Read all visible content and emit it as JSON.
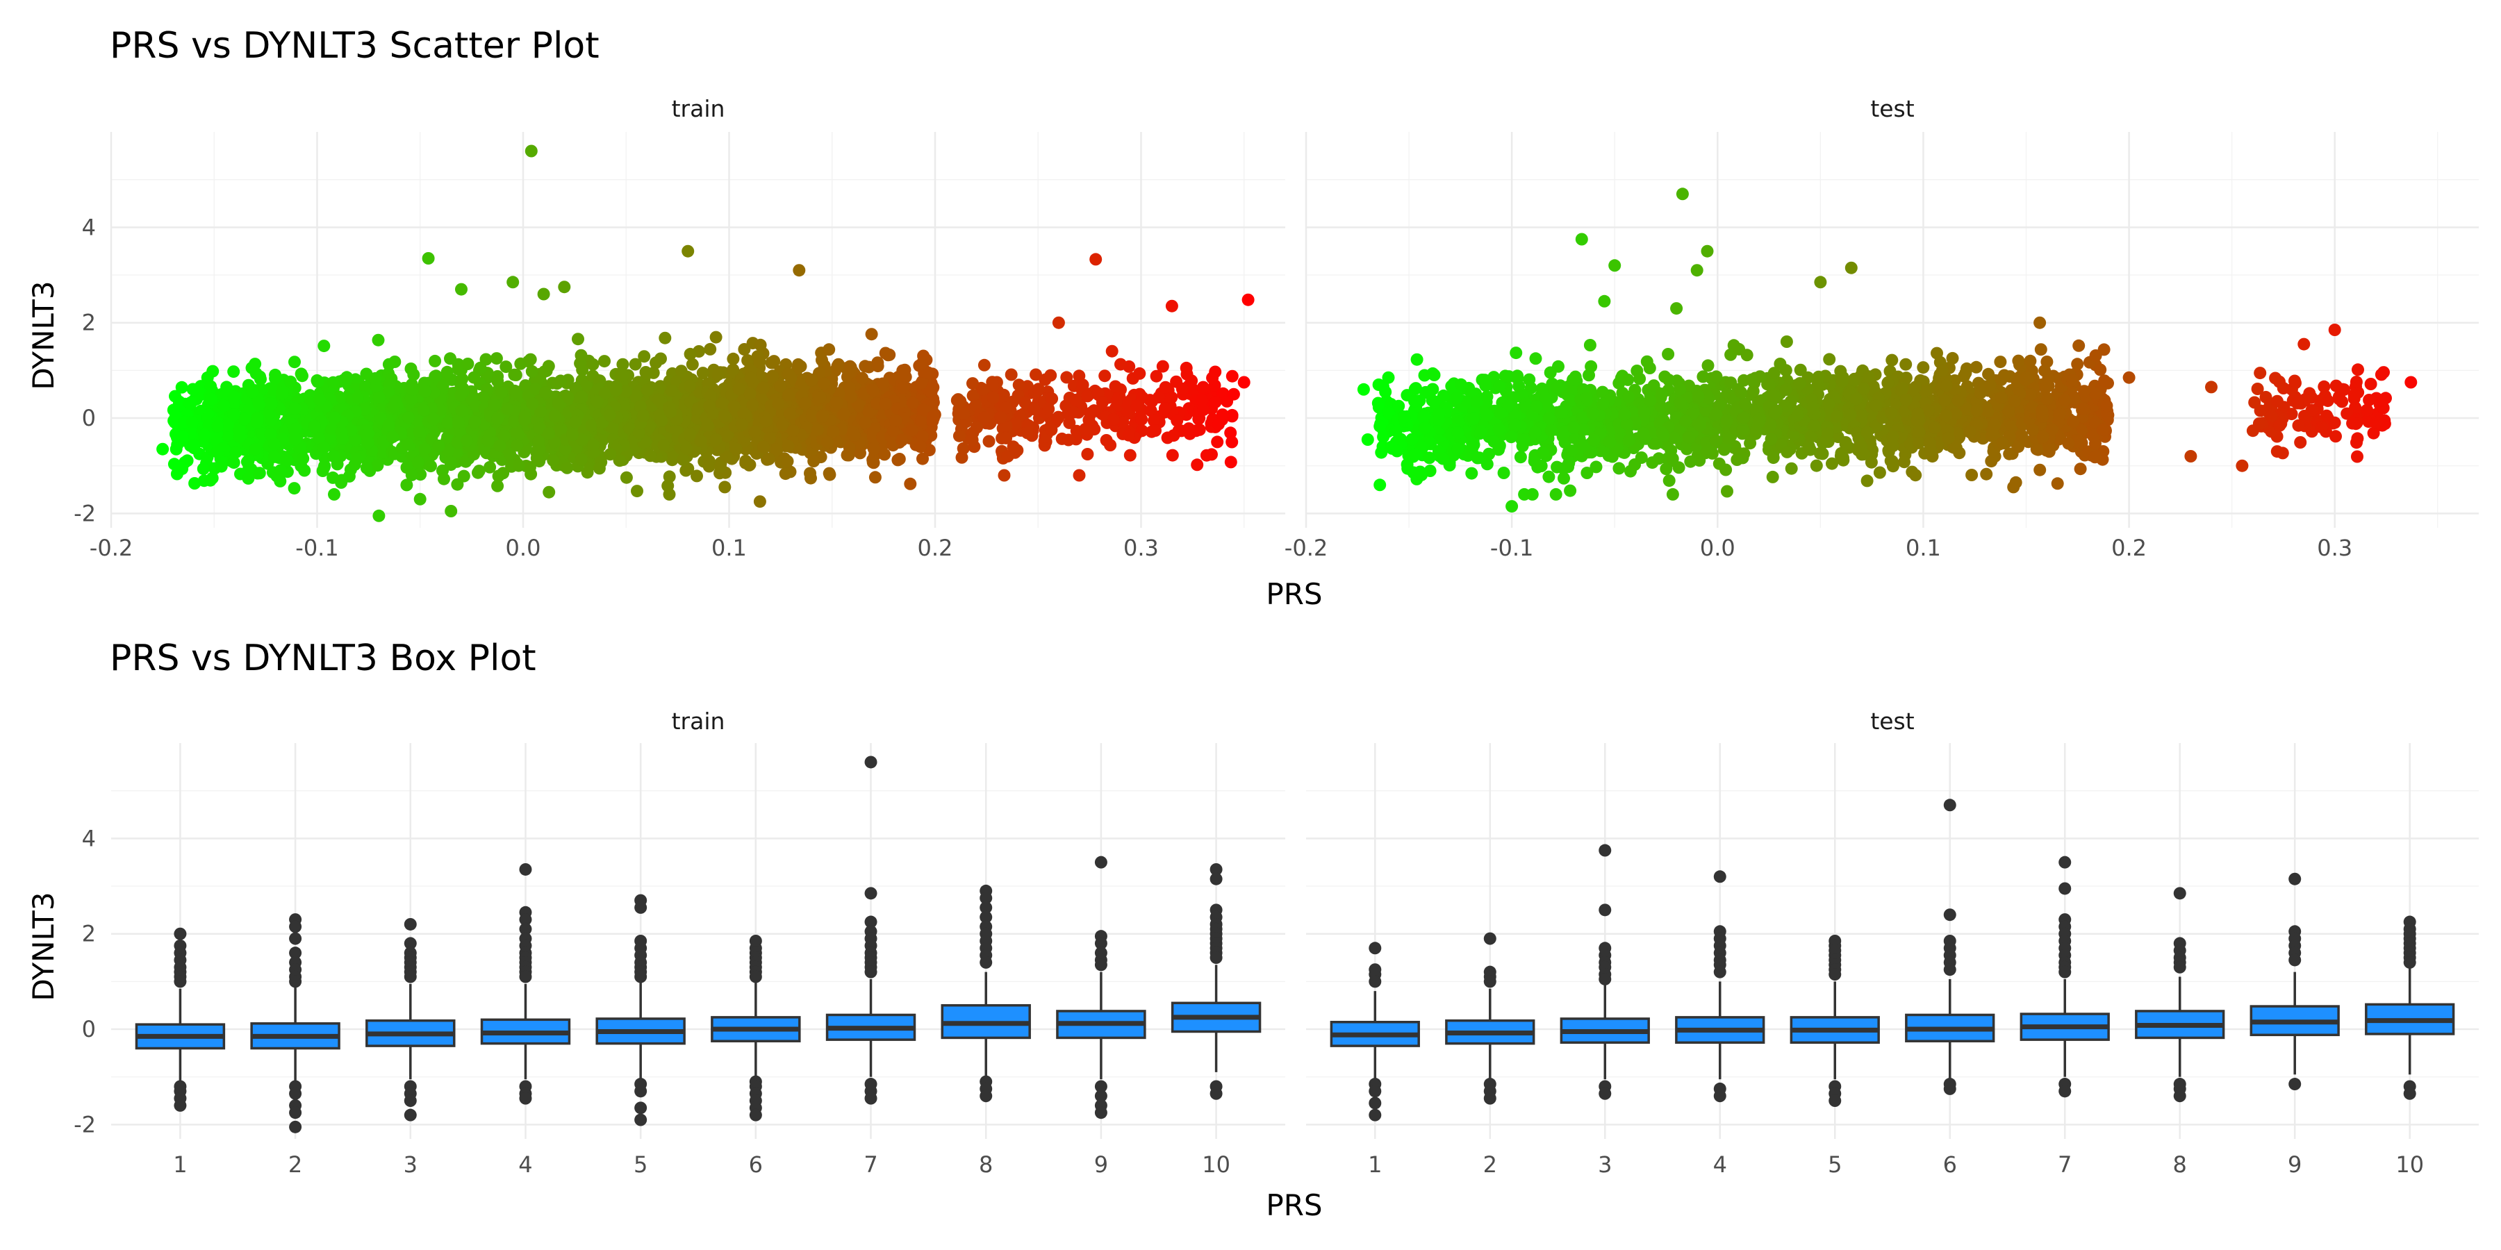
{
  "chart_data": [
    {
      "type": "scatter",
      "title": "PRS vs DYNLT3 Scatter Plot",
      "xlabel": "PRS",
      "ylabel": "DYNLT3",
      "xlim": [
        -0.2,
        0.37
      ],
      "ylim": [
        -2.3,
        6.0
      ],
      "x_ticks": [
        "-0.2",
        "-0.1",
        "0.0",
        "0.1",
        "0.2",
        "0.3"
      ],
      "y_ticks": [
        "-2",
        "0",
        "2",
        "4"
      ],
      "grid": true,
      "color_gradient": [
        "#00ff00",
        "#ff0000"
      ],
      "facets": [
        {
          "name": "train",
          "bulk": {
            "x_range": [
              -0.17,
              0.2
            ],
            "sd_y": 0.5,
            "trend": 0.9
          },
          "cluster": {
            "x_range": [
              0.21,
              0.345
            ],
            "center_y": 0.1,
            "sd_y": 0.45
          },
          "points": [
            {
              "x": 0.004,
              "y": 5.6
            },
            {
              "x": -0.046,
              "y": 3.35
            },
            {
              "x": 0.08,
              "y": 3.5
            },
            {
              "x": 0.134,
              "y": 3.1
            },
            {
              "x": 0.278,
              "y": 3.33
            },
            {
              "x": 0.315,
              "y": 2.35
            },
            {
              "x": 0.352,
              "y": 2.48
            },
            {
              "x": -0.005,
              "y": 2.85
            },
            {
              "x": 0.01,
              "y": 2.6
            },
            {
              "x": -0.03,
              "y": 2.7
            },
            {
              "x": 0.02,
              "y": 2.75
            },
            {
              "x": -0.175,
              "y": -0.65
            },
            {
              "x": -0.07,
              "y": -2.05
            },
            {
              "x": -0.035,
              "y": -1.95
            },
            {
              "x": -0.05,
              "y": -1.7
            },
            {
              "x": 0.115,
              "y": -1.75
            },
            {
              "x": 0.27,
              "y": -1.2
            },
            {
              "x": 0.35,
              "y": 0.75
            },
            {
              "x": 0.337,
              "y": -0.5
            },
            {
              "x": 0.345,
              "y": 0.5
            },
            {
              "x": 0.322,
              "y": 1.05
            },
            {
              "x": 0.26,
              "y": 2.0
            },
            {
              "x": 0.238,
              "y": -0.6
            },
            {
              "x": 0.228,
              "y": 0.7
            }
          ]
        },
        {
          "name": "test",
          "bulk": {
            "x_range": [
              -0.165,
              0.19
            ],
            "sd_y": 0.5,
            "trend": 0.8
          },
          "cluster": {
            "x_range": [
              0.26,
              0.325
            ],
            "center_y": 0.2,
            "sd_y": 0.4
          },
          "points": [
            {
              "x": -0.017,
              "y": 4.7
            },
            {
              "x": -0.066,
              "y": 3.75
            },
            {
              "x": -0.005,
              "y": 3.5
            },
            {
              "x": -0.05,
              "y": 3.2
            },
            {
              "x": -0.01,
              "y": 3.1
            },
            {
              "x": 0.065,
              "y": 3.15
            },
            {
              "x": 0.05,
              "y": 2.85
            },
            {
              "x": -0.055,
              "y": 2.45
            },
            {
              "x": -0.02,
              "y": 2.3
            },
            {
              "x": 0.3,
              "y": 1.85
            },
            {
              "x": 0.337,
              "y": 0.75
            },
            {
              "x": -0.172,
              "y": 0.6
            },
            {
              "x": -0.17,
              "y": -0.45
            },
            {
              "x": -0.1,
              "y": -1.85
            },
            {
              "x": -0.09,
              "y": -1.6
            },
            {
              "x": 0.145,
              "y": -1.35
            },
            {
              "x": 0.23,
              "y": -0.8
            },
            {
              "x": 0.255,
              "y": -1.0
            },
            {
              "x": 0.2,
              "y": 0.85
            },
            {
              "x": 0.24,
              "y": 0.65
            },
            {
              "x": 0.285,
              "y": 1.55
            },
            {
              "x": 0.32,
              "y": -0.1
            },
            {
              "x": 0.272,
              "y": -0.7
            },
            {
              "x": -0.16,
              "y": 0.85
            }
          ]
        }
      ]
    },
    {
      "type": "box",
      "title": "PRS vs DYNLT3 Box Plot",
      "xlabel": "PRS",
      "ylabel": "DYNLT3",
      "categories": [
        "1",
        "2",
        "3",
        "4",
        "5",
        "6",
        "7",
        "8",
        "9",
        "10"
      ],
      "ylim": [
        -2.3,
        6.0
      ],
      "y_ticks": [
        "-2",
        "0",
        "2",
        "4"
      ],
      "grid": true,
      "box_color": "#1e90ff",
      "facets": [
        {
          "name": "train",
          "boxes": [
            {
              "q1": -0.4,
              "median": -0.15,
              "q3": 0.1,
              "lower": -1.1,
              "upper": 0.85,
              "outliers": [
                2.0,
                1.75,
                1.6,
                1.45,
                1.3,
                1.2,
                1.1,
                1.0,
                -1.2,
                -1.3,
                -1.45,
                -1.6
              ]
            },
            {
              "q1": -0.4,
              "median": -0.15,
              "q3": 0.12,
              "lower": -1.1,
              "upper": 0.9,
              "outliers": [
                2.3,
                2.15,
                1.9,
                1.6,
                1.4,
                1.25,
                1.1,
                1.0,
                -1.2,
                -1.35,
                -1.6,
                -1.75,
                -2.05
              ]
            },
            {
              "q1": -0.35,
              "median": -0.1,
              "q3": 0.18,
              "lower": -1.05,
              "upper": 0.95,
              "outliers": [
                2.2,
                1.8,
                1.6,
                1.5,
                1.4,
                1.3,
                1.2,
                1.1,
                -1.2,
                -1.35,
                -1.5,
                -1.8
              ]
            },
            {
              "q1": -0.3,
              "median": -0.08,
              "q3": 0.2,
              "lower": -1.05,
              "upper": 0.95,
              "outliers": [
                3.35,
                2.45,
                2.3,
                2.1,
                1.9,
                1.75,
                1.6,
                1.5,
                1.4,
                1.3,
                1.2,
                1.1,
                -1.2,
                -1.35,
                -1.45
              ]
            },
            {
              "q1": -0.3,
              "median": -0.05,
              "q3": 0.22,
              "lower": -1.05,
              "upper": 1.0,
              "outliers": [
                2.7,
                2.55,
                1.85,
                1.7,
                1.55,
                1.4,
                1.3,
                1.2,
                1.1,
                -1.15,
                -1.3,
                -1.65,
                -1.9
              ]
            },
            {
              "q1": -0.25,
              "median": 0.0,
              "q3": 0.25,
              "lower": -1.0,
              "upper": 1.0,
              "outliers": [
                1.85,
                1.7,
                1.6,
                1.5,
                1.4,
                1.3,
                1.2,
                1.1,
                -1.1,
                -1.2,
                -1.35,
                -1.5,
                -1.65,
                -1.8
              ]
            },
            {
              "q1": -0.22,
              "median": 0.02,
              "q3": 0.3,
              "lower": -1.0,
              "upper": 1.05,
              "outliers": [
                5.6,
                2.85,
                2.25,
                2.05,
                1.9,
                1.75,
                1.6,
                1.5,
                1.4,
                1.3,
                1.2,
                -1.15,
                -1.3,
                -1.45
              ]
            },
            {
              "q1": -0.18,
              "median": 0.12,
              "q3": 0.5,
              "lower": -1.0,
              "upper": 1.2,
              "outliers": [
                2.9,
                2.75,
                2.55,
                2.35,
                2.15,
                2.0,
                1.85,
                1.7,
                1.55,
                1.4,
                -1.1,
                -1.25,
                -1.4
              ]
            },
            {
              "q1": -0.18,
              "median": 0.12,
              "q3": 0.38,
              "lower": -1.05,
              "upper": 1.2,
              "outliers": [
                3.5,
                1.95,
                1.8,
                1.6,
                1.45,
                1.35,
                -1.2,
                -1.4,
                -1.6,
                -1.75
              ]
            },
            {
              "q1": -0.05,
              "median": 0.25,
              "q3": 0.55,
              "lower": -0.9,
              "upper": 1.35,
              "outliers": [
                3.35,
                3.15,
                2.5,
                2.35,
                2.2,
                2.1,
                2.0,
                1.9,
                1.8,
                1.7,
                1.6,
                1.5,
                -1.2,
                -1.35
              ]
            }
          ]
        },
        {
          "name": "test",
          "boxes": [
            {
              "q1": -0.35,
              "median": -0.12,
              "q3": 0.15,
              "lower": -1.05,
              "upper": 0.8,
              "outliers": [
                1.7,
                1.25,
                1.15,
                1.0,
                -1.15,
                -1.3,
                -1.55,
                -1.8
              ]
            },
            {
              "q1": -0.3,
              "median": -0.08,
              "q3": 0.18,
              "lower": -1.05,
              "upper": 0.85,
              "outliers": [
                1.9,
                1.2,
                1.1,
                1.0,
                -1.15,
                -1.3,
                -1.45
              ]
            },
            {
              "q1": -0.28,
              "median": -0.05,
              "q3": 0.22,
              "lower": -1.05,
              "upper": 0.95,
              "outliers": [
                3.75,
                2.5,
                1.7,
                1.55,
                1.4,
                1.3,
                1.15,
                1.05,
                -1.2,
                -1.35
              ]
            },
            {
              "q1": -0.28,
              "median": -0.02,
              "q3": 0.25,
              "lower": -1.05,
              "upper": 1.0,
              "outliers": [
                3.2,
                2.05,
                1.9,
                1.75,
                1.6,
                1.45,
                1.35,
                1.2,
                -1.25,
                -1.4
              ]
            },
            {
              "q1": -0.28,
              "median": -0.02,
              "q3": 0.25,
              "lower": -1.05,
              "upper": 1.0,
              "outliers": [
                1.85,
                1.75,
                1.65,
                1.55,
                1.45,
                1.35,
                1.25,
                1.15,
                -1.2,
                -1.35,
                -1.5
              ]
            },
            {
              "q1": -0.25,
              "median": 0.0,
              "q3": 0.3,
              "lower": -1.05,
              "upper": 1.05,
              "outliers": [
                4.7,
                2.4,
                1.85,
                1.7,
                1.55,
                1.4,
                1.25,
                -1.15,
                -1.25
              ]
            },
            {
              "q1": -0.22,
              "median": 0.05,
              "q3": 0.32,
              "lower": -1.0,
              "upper": 1.05,
              "outliers": [
                3.5,
                2.95,
                2.3,
                2.15,
                2.0,
                1.85,
                1.7,
                1.55,
                1.4,
                1.3,
                1.2,
                -1.15,
                -1.3
              ]
            },
            {
              "q1": -0.18,
              "median": 0.08,
              "q3": 0.38,
              "lower": -1.0,
              "upper": 1.1,
              "outliers": [
                2.85,
                1.8,
                1.65,
                1.5,
                1.4,
                1.3,
                -1.15,
                -1.25,
                -1.4
              ]
            },
            {
              "q1": -0.12,
              "median": 0.15,
              "q3": 0.48,
              "lower": -0.95,
              "upper": 1.2,
              "outliers": [
                3.15,
                2.05,
                1.9,
                1.75,
                1.6,
                1.45,
                -1.15
              ]
            },
            {
              "q1": -0.1,
              "median": 0.18,
              "q3": 0.52,
              "lower": -0.95,
              "upper": 1.3,
              "outliers": [
                2.25,
                2.1,
                2.0,
                1.9,
                1.8,
                1.7,
                1.6,
                1.5,
                1.4,
                -1.2,
                -1.35
              ]
            }
          ]
        }
      ]
    }
  ]
}
